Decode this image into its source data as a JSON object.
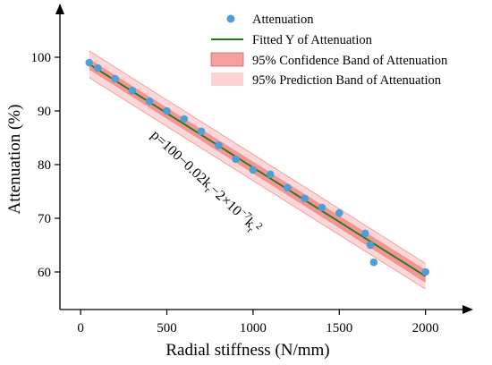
{
  "chart_data": {
    "type": "scatter",
    "xlabel": "Radial stiffness (N/mm)",
    "ylabel": "Attenuation (%)",
    "xlim": [
      -120,
      2230
    ],
    "ylim": [
      53,
      109
    ],
    "x_ticks": [
      0,
      500,
      1000,
      1500,
      2000
    ],
    "y_ticks": [
      60,
      70,
      80,
      90,
      100
    ],
    "grid": false,
    "legend_position": "top-right",
    "annotation": {
      "main": "p=100−0.02k",
      "sub1": "r",
      "mid": "−2×10",
      "sup": "−7",
      "k": "k",
      "sub2": "r",
      "sup2": "2"
    },
    "series": [
      {
        "name": "Attenuation",
        "kind": "points",
        "color": "#4f9fd6",
        "x": [
          50,
          100,
          200,
          300,
          400,
          500,
          600,
          700,
          800,
          900,
          1000,
          1100,
          1200,
          1300,
          1400,
          1500,
          1650,
          1680,
          1700,
          2000
        ],
        "y": [
          99,
          98,
          96,
          93.8,
          91.8,
          90,
          88.5,
          86.2,
          83.6,
          81,
          79,
          78.2,
          75.7,
          73.7,
          72,
          71,
          67.2,
          65,
          61.8,
          60
        ]
      },
      {
        "name": "Fitted Y of Attenuation",
        "kind": "line",
        "color": "#1a7a1a",
        "x": [
          50,
          2000
        ],
        "y": [
          98.7,
          59.2
        ]
      },
      {
        "name": "95% Confidence Band of Attenuation",
        "kind": "band",
        "color": "#f28a8a",
        "x": [
          50,
          2000
        ],
        "lower": [
          97.8,
          58.1
        ],
        "upper": [
          99.6,
          60.3
        ]
      },
      {
        "name": "95% Prediction Band of Attenuation",
        "kind": "band",
        "color": "#fbd3d3",
        "x": [
          50,
          2000
        ],
        "lower": [
          96.2,
          56.8
        ],
        "upper": [
          101.2,
          61.6
        ]
      }
    ]
  }
}
